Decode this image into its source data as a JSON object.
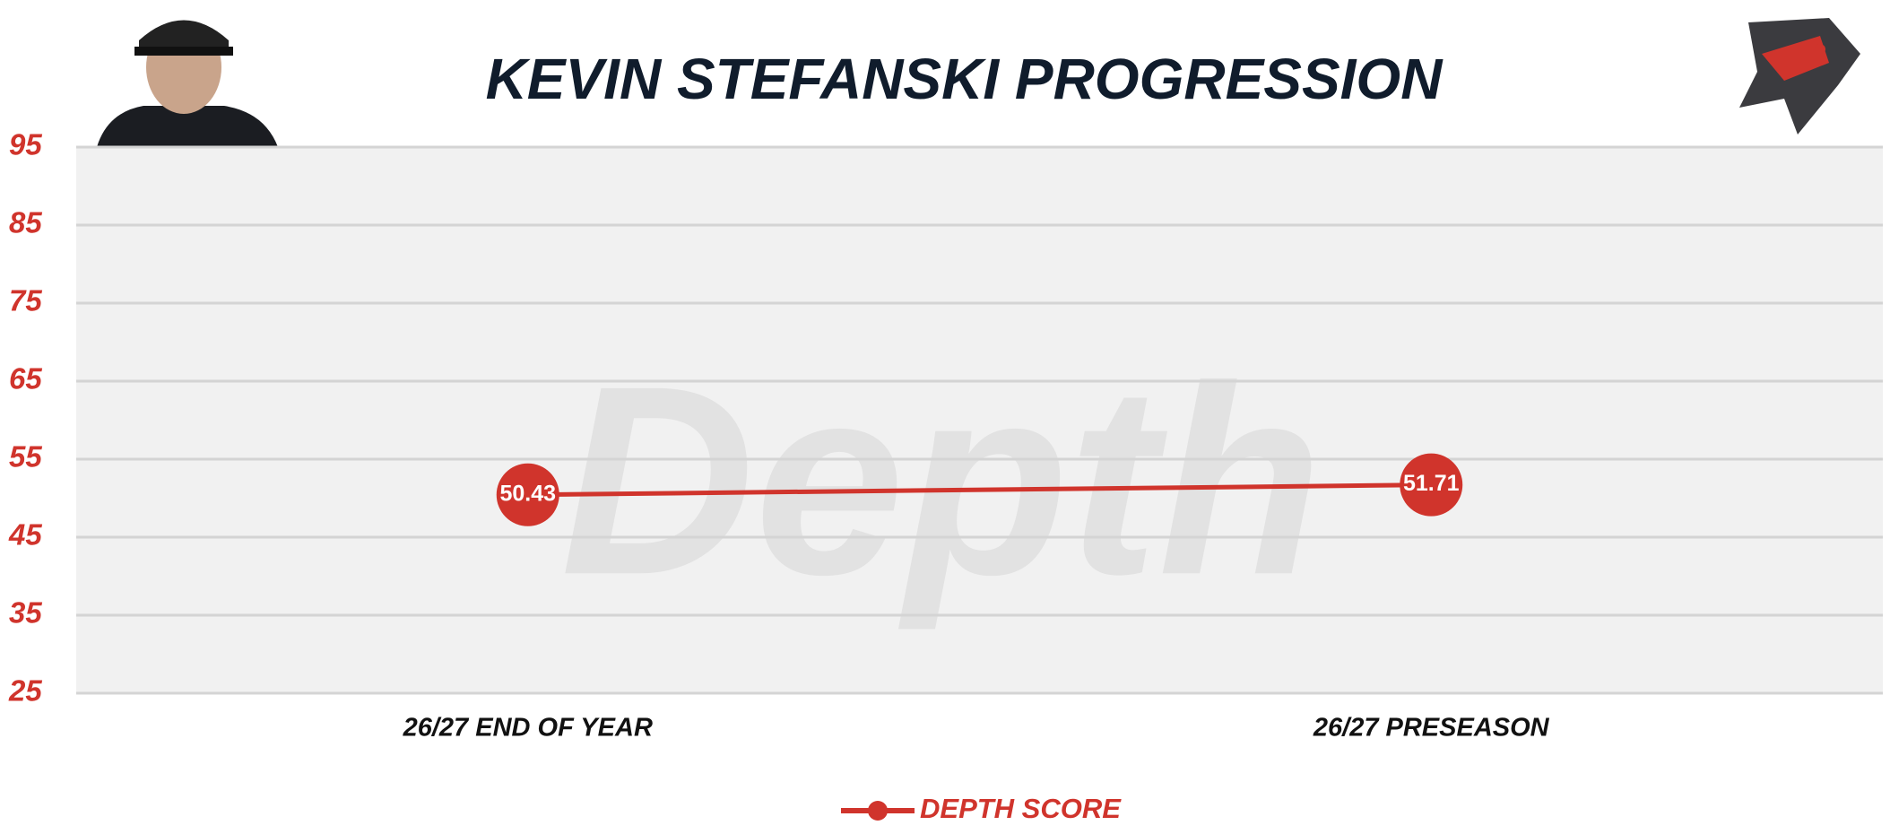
{
  "chart_data": {
    "type": "line",
    "title": "KEVIN STEFANSKI PROGRESSION",
    "watermark": "Depth",
    "categories": [
      "26/27 END OF YEAR",
      "26/27 PRESEASON"
    ],
    "series": [
      {
        "name": "DEPTH SCORE",
        "color": "#d0342c",
        "values": [
          50.43,
          51.71
        ]
      }
    ],
    "ylim": [
      25,
      95
    ],
    "yticks": [
      25,
      35,
      45,
      55,
      65,
      75,
      85,
      95
    ],
    "grid": true
  }
}
